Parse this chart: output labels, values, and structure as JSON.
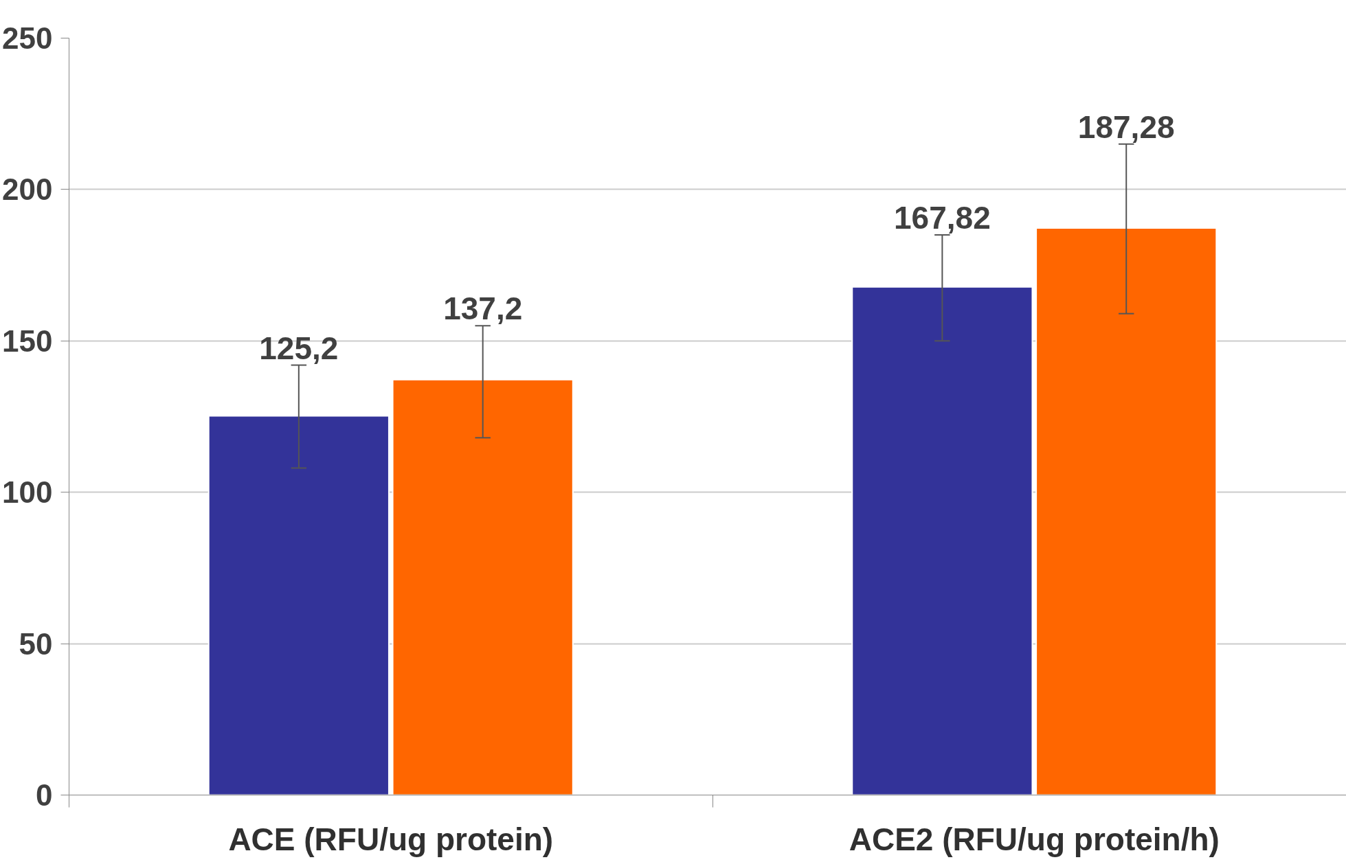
{
  "chart_data": {
    "type": "bar",
    "categories": [
      "ACE (RFU/ug protein)",
      "ACE2 (RFU/ug protein/h)"
    ],
    "series": [
      {
        "color": "#333399",
        "values": [
          125.2,
          167.82
        ],
        "errors": [
          [
            108,
            142
          ],
          [
            150,
            185
          ]
        ],
        "value_labels": [
          "125,2",
          "167,82"
        ]
      },
      {
        "color": "#ff6600",
        "values": [
          137.2,
          187.28
        ],
        "errors": [
          [
            118,
            155
          ],
          [
            159,
            215
          ]
        ],
        "value_labels": [
          "137,2",
          "187,28"
        ]
      }
    ],
    "ylim": [
      0,
      250
    ],
    "yticks": [
      0,
      50,
      100,
      150,
      200,
      250
    ],
    "grid": "y"
  }
}
